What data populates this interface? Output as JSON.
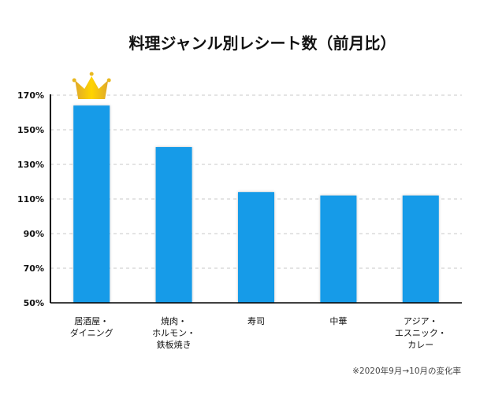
{
  "chart_data": {
    "type": "bar",
    "title": "料理ジャンル別レシート数（前月比）",
    "categories": [
      [
        "居酒屋・",
        "ダイニング"
      ],
      [
        "焼肉・",
        "ホルモン・",
        "鉄板焼き"
      ],
      [
        "寿司"
      ],
      [
        "中華"
      ],
      [
        "アジア・",
        "エスニック・",
        "カレー"
      ]
    ],
    "values": [
      164,
      140,
      114,
      112,
      112
    ],
    "unit": "%",
    "ylim": [
      50,
      170
    ],
    "yticks": [
      "50%",
      "70%",
      "90%",
      "110%",
      "130%",
      "150%",
      "170%"
    ],
    "ytick_values": [
      50,
      70,
      90,
      110,
      130,
      150,
      170
    ],
    "grid": true,
    "bar_color": "#139be8",
    "highlight": {
      "category_index": 0,
      "icon": "crown-icon",
      "color": "#f2c200"
    },
    "footnote": "※2020年9月→10月の変化率"
  }
}
